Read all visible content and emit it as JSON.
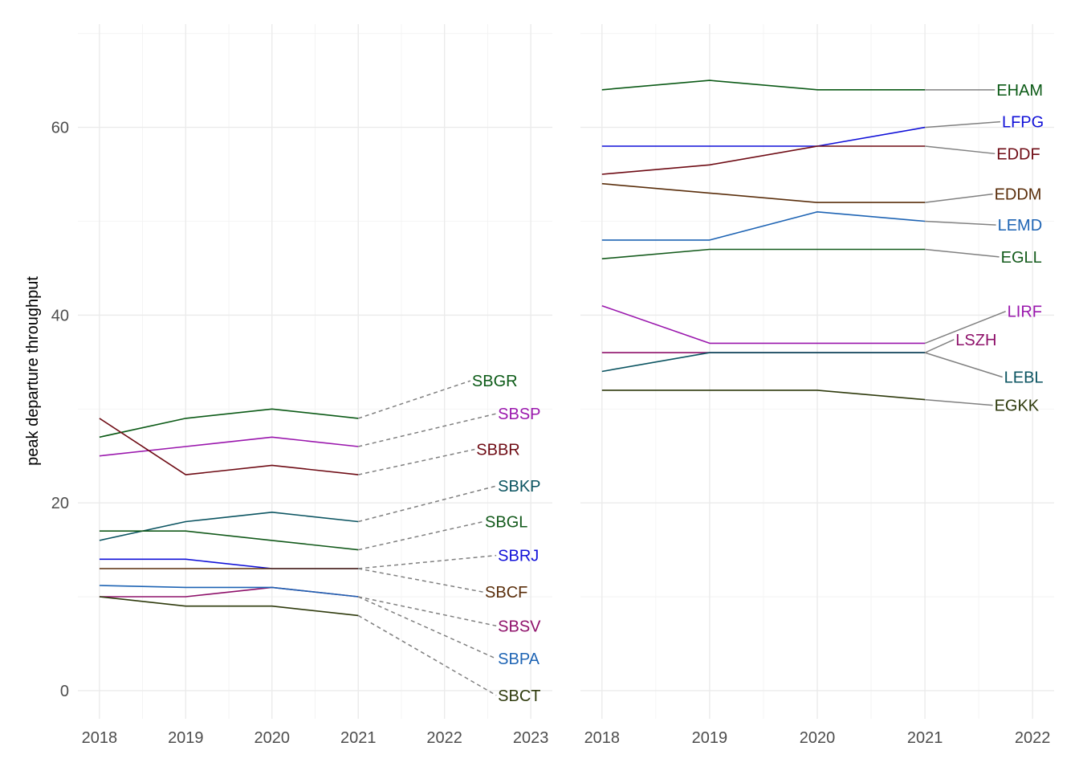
{
  "chart_data": [
    {
      "type": "line",
      "panel": "left",
      "ylabel": "peak departure throughput",
      "x_ticks": [
        2018,
        2019,
        2020,
        2021,
        2022,
        2023
      ],
      "xlim": [
        2017.75,
        2023.25
      ],
      "y_ticks": [
        0,
        20,
        40,
        60
      ],
      "ylim": [
        -3,
        71
      ],
      "connector_style": "dashed",
      "series": [
        {
          "name": "SBGR",
          "color": "#0b5a16",
          "x": [
            2018,
            2019,
            2020,
            2021
          ],
          "values": [
            27,
            29,
            30,
            29
          ],
          "label_anchor": [
            2022.3,
            33
          ]
        },
        {
          "name": "SBSP",
          "color": "#9a17ad",
          "x": [
            2018,
            2019,
            2020,
            2021
          ],
          "values": [
            25,
            26,
            27,
            26
          ],
          "label_anchor": [
            2022.6,
            29.5
          ]
        },
        {
          "name": "SBBR",
          "color": "#6e0b14",
          "x": [
            2018,
            2019,
            2020,
            2021
          ],
          "values": [
            29,
            23,
            24,
            23
          ],
          "label_anchor": [
            2022.35,
            25.7
          ]
        },
        {
          "name": "SBKP",
          "color": "#0b5461",
          "x": [
            2018,
            2019,
            2020,
            2021
          ],
          "values": [
            16,
            18,
            19,
            18
          ],
          "label_anchor": [
            2022.6,
            21.8
          ]
        },
        {
          "name": "SBGL",
          "color": "#135a1b",
          "x": [
            2018,
            2019,
            2020,
            2021
          ],
          "values": [
            17,
            17,
            16,
            15
          ],
          "label_anchor": [
            2022.45,
            18
          ]
        },
        {
          "name": "SBRJ",
          "color": "#1010d8",
          "x": [
            2018,
            2019,
            2020,
            2021
          ],
          "values": [
            14,
            14,
            13,
            13
          ],
          "label_anchor": [
            2022.6,
            14.4
          ]
        },
        {
          "name": "SBCF",
          "color": "#5a2e0b",
          "x": [
            2018,
            2019,
            2020,
            2021
          ],
          "values": [
            13,
            13,
            13,
            13
          ],
          "label_anchor": [
            2022.45,
            10.5
          ]
        },
        {
          "name": "SBSV",
          "color": "#8e116a",
          "x": [
            2018,
            2019,
            2020,
            2021
          ],
          "values": [
            10,
            10,
            11,
            10
          ],
          "label_anchor": [
            2022.6,
            6.9
          ]
        },
        {
          "name": "SBPA",
          "color": "#1e64b4",
          "x": [
            2018,
            2019,
            2020,
            2021
          ],
          "values": [
            11.2,
            11,
            11,
            10
          ],
          "label_anchor": [
            2022.6,
            3.4
          ]
        },
        {
          "name": "SBCT",
          "color": "#2e3a0c",
          "x": [
            2018,
            2019,
            2020,
            2021
          ],
          "values": [
            10,
            9,
            9,
            8
          ],
          "label_anchor": [
            2022.6,
            -0.5
          ]
        }
      ]
    },
    {
      "type": "line",
      "panel": "right",
      "x_ticks": [
        2018,
        2019,
        2020,
        2021,
        2022
      ],
      "xlim": [
        2017.8,
        2022.2
      ],
      "y_ticks": [
        0,
        20,
        40,
        60
      ],
      "ylim": [
        -3,
        71
      ],
      "connector_style": "solid",
      "series": [
        {
          "name": "EHAM",
          "color": "#0b5a16",
          "x": [
            2018,
            2019,
            2020,
            2021
          ],
          "values": [
            64,
            65,
            64,
            64
          ],
          "label_anchor": [
            2021.65,
            64
          ]
        },
        {
          "name": "LFPG",
          "color": "#1010d8",
          "x": [
            2018,
            2019,
            2020,
            2021
          ],
          "values": [
            58,
            58,
            58,
            60
          ],
          "label_anchor": [
            2021.7,
            60.6
          ]
        },
        {
          "name": "EDDF",
          "color": "#6e0b14",
          "x": [
            2018,
            2019,
            2020,
            2021
          ],
          "values": [
            55,
            56,
            58,
            58
          ],
          "label_anchor": [
            2021.65,
            57.2
          ]
        },
        {
          "name": "EDDM",
          "color": "#5a2e0b",
          "x": [
            2018,
            2019,
            2020,
            2021
          ],
          "values": [
            54,
            53,
            52,
            52
          ],
          "label_anchor": [
            2021.63,
            52.9
          ]
        },
        {
          "name": "LEMD",
          "color": "#1e64b4",
          "x": [
            2018,
            2019,
            2020,
            2021
          ],
          "values": [
            48,
            48,
            51,
            50
          ],
          "label_anchor": [
            2021.66,
            49.6
          ]
        },
        {
          "name": "EGLL",
          "color": "#135a1b",
          "x": [
            2018,
            2019,
            2020,
            2021
          ],
          "values": [
            46,
            47,
            47,
            47
          ],
          "label_anchor": [
            2021.69,
            46.2
          ]
        },
        {
          "name": "LIRF",
          "color": "#9a17ad",
          "x": [
            2018,
            2019,
            2020,
            2021
          ],
          "values": [
            41,
            37,
            37,
            37
          ],
          "label_anchor": [
            2021.75,
            40.4
          ]
        },
        {
          "name": "LSZH",
          "color": "#8e116a",
          "x": [
            2018,
            2019,
            2020,
            2021
          ],
          "values": [
            36,
            36,
            36,
            36
          ],
          "label_anchor": [
            2021.27,
            37.4
          ]
        },
        {
          "name": "LEBL",
          "color": "#0b5461",
          "x": [
            2018,
            2019,
            2020,
            2021
          ],
          "values": [
            34,
            36,
            36,
            36
          ],
          "label_anchor": [
            2021.72,
            33.4
          ]
        },
        {
          "name": "EGKK",
          "color": "#2e3a0c",
          "x": [
            2018,
            2019,
            2020,
            2021
          ],
          "values": [
            32,
            32,
            32,
            31
          ],
          "label_anchor": [
            2021.63,
            30.4
          ]
        }
      ]
    }
  ]
}
